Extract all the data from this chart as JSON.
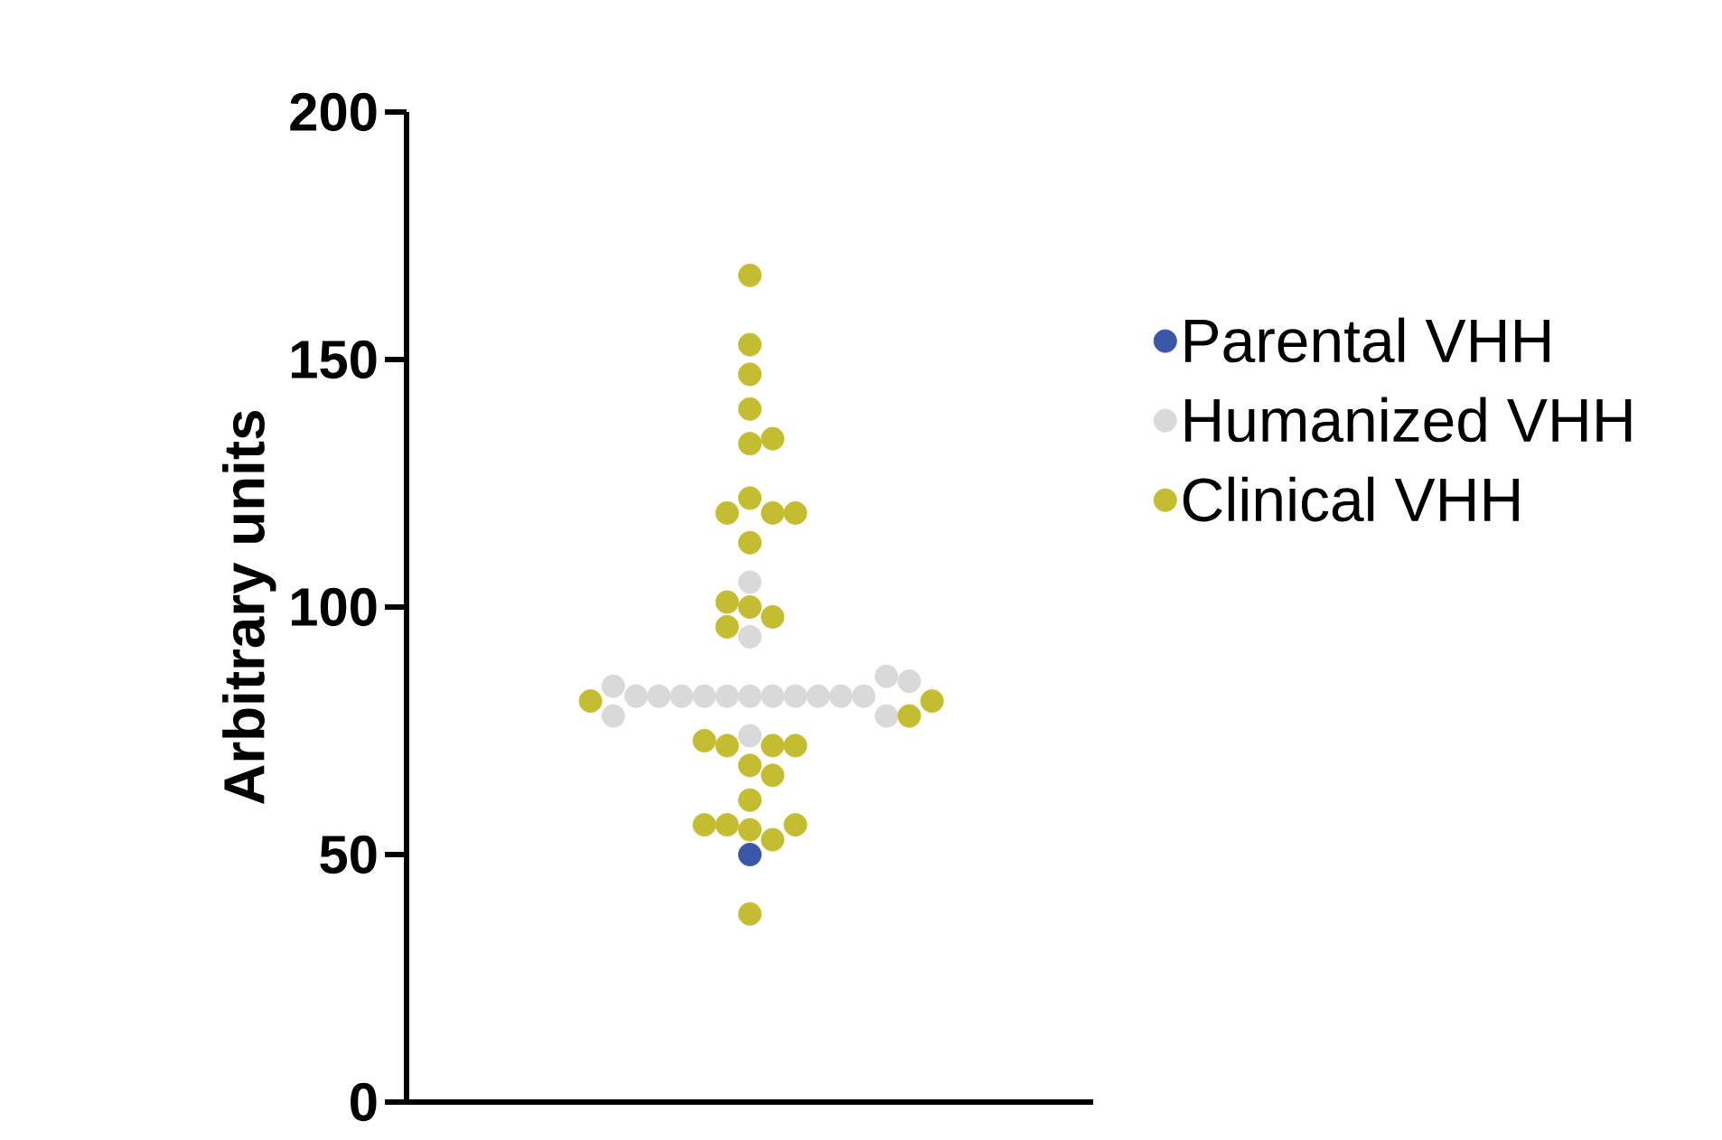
{
  "chart_data": {
    "type": "scatter",
    "ylabel": "Arbitrary units",
    "categories": [
      null
    ],
    "series": [
      {
        "name": "Parental VHH",
        "color": "#3a56a8",
        "x": [
          null
        ],
        "values": [
          50
        ]
      },
      {
        "name": "Humanized VHH",
        "color": "#d9d9d9",
        "x": [
          null,
          null,
          null,
          null,
          null,
          null,
          null,
          null,
          null,
          null,
          null,
          null,
          null,
          null,
          null,
          null,
          null,
          null,
          null
        ],
        "values": [
          82,
          82,
          82,
          82,
          82,
          82,
          82,
          82,
          82,
          82,
          82,
          86,
          84,
          85,
          78,
          78,
          74,
          94,
          105
        ]
      },
      {
        "name": "Clinical VHH",
        "color": "#c4bd32",
        "x": [
          null,
          null,
          null,
          null,
          null,
          null,
          null,
          null,
          null,
          null,
          null,
          null,
          null,
          null,
          null,
          null,
          null,
          null,
          null,
          null,
          null,
          null,
          null,
          null,
          null,
          null,
          null,
          null,
          null,
          null,
          null
        ],
        "values": [
          167,
          153,
          147,
          140,
          133,
          134,
          122,
          119,
          119,
          119,
          113,
          98,
          100,
          101,
          96,
          81,
          81,
          78,
          72,
          72,
          72,
          73,
          68,
          66,
          61,
          55,
          53,
          56,
          56,
          56,
          38
        ]
      }
    ],
    "marker": "circle",
    "ylim": [
      0,
      200
    ],
    "yticks": [
      0,
      50,
      100,
      150,
      200
    ],
    "tick_labels": "y",
    "legend": "right"
  }
}
